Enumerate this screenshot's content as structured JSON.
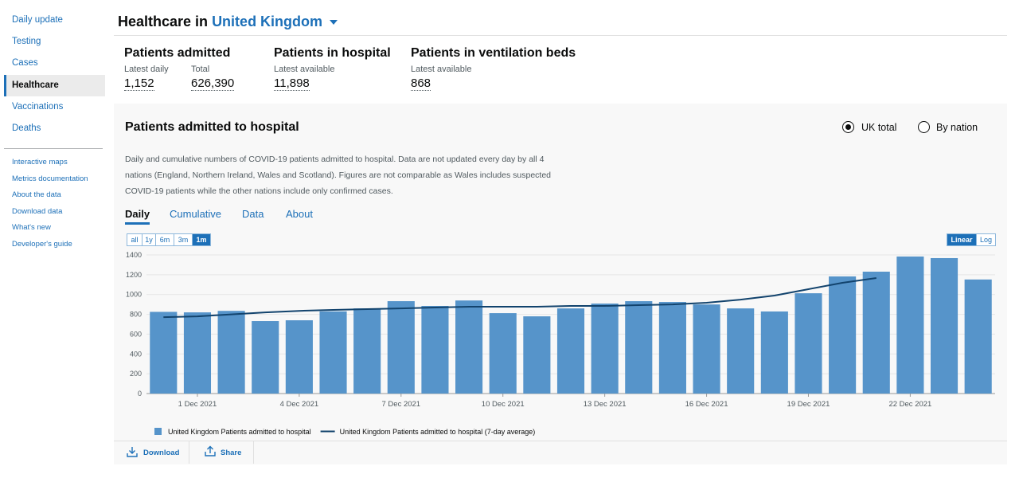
{
  "nav": {
    "primary": [
      "Daily update",
      "Testing",
      "Cases",
      "Healthcare",
      "Vaccinations",
      "Deaths"
    ],
    "secondary": [
      "Interactive maps",
      "Metrics documentation",
      "About the data",
      "Download data",
      "What's new",
      "Developer's guide"
    ]
  },
  "header": {
    "title": "Healthcare in",
    "location": "United Kingdom"
  },
  "summary": [
    {
      "title": "Patients admitted",
      "items": [
        {
          "label": "Latest daily",
          "value": "1,152"
        },
        {
          "label": "Total",
          "value": "626,390"
        }
      ]
    },
    {
      "title": "Patients in hospital",
      "items": [
        {
          "label": "Latest available",
          "value": "11,898"
        }
      ]
    },
    {
      "title": "Patients in ventilation beds",
      "items": [
        {
          "label": "Latest available",
          "value": "868"
        }
      ]
    }
  ],
  "card": {
    "title": "Patients admitted to hospital",
    "options": [
      "UK total",
      "By nation"
    ],
    "description": "Daily and cumulative numbers of COVID-19 patients admitted to hospital. Data are not updated every day by all 4 nations (England, Northern Ireland, Wales and Scotland). Figures are not comparable as Wales includes suspected COVID-19 patients while the other nations include only confirmed cases.",
    "tabs": [
      "Daily",
      "Cumulative",
      "Data",
      "About"
    ],
    "ranges": [
      "all",
      "1y",
      "6m",
      "3m",
      "1m"
    ],
    "scales": [
      "Linear",
      "Log"
    ],
    "actions": [
      "Download",
      "Share"
    ]
  },
  "chart_data": {
    "type": "bar",
    "categories": [
      null,
      "1 Dec 2021",
      null,
      null,
      "4 Dec 2021",
      null,
      null,
      "7 Dec 2021",
      null,
      null,
      "10 Dec 2021",
      null,
      null,
      "13 Dec 2021",
      null,
      null,
      "16 Dec 2021",
      null,
      null,
      "19 Dec 2021",
      null,
      null,
      "22 Dec 2021",
      null,
      null
    ],
    "series": [
      {
        "name": "United Kingdom Patients admitted to hospital",
        "color": "#5694ca",
        "type": "bar",
        "values": [
          825,
          820,
          835,
          732,
          740,
          830,
          860,
          933,
          885,
          940,
          812,
          780,
          860,
          909,
          933,
          925,
          900,
          860,
          829,
          1013,
          1183,
          1231,
          1384,
          1368,
          1152
        ]
      },
      {
        "name": "United Kingdom Patients admitted to hospital (7-day average)",
        "color": "#12436d",
        "type": "line",
        "values": [
          772,
          780,
          800,
          820,
          835,
          845,
          853,
          860,
          869,
          877,
          877,
          877,
          885,
          885,
          893,
          900,
          917,
          949,
          990,
          1054,
          1118,
          1167,
          null,
          null,
          null
        ]
      }
    ],
    "ylim": [
      0,
      1400
    ],
    "yticks": [
      0,
      200,
      400,
      600,
      800,
      1000,
      1200,
      1400
    ],
    "grid": true
  }
}
